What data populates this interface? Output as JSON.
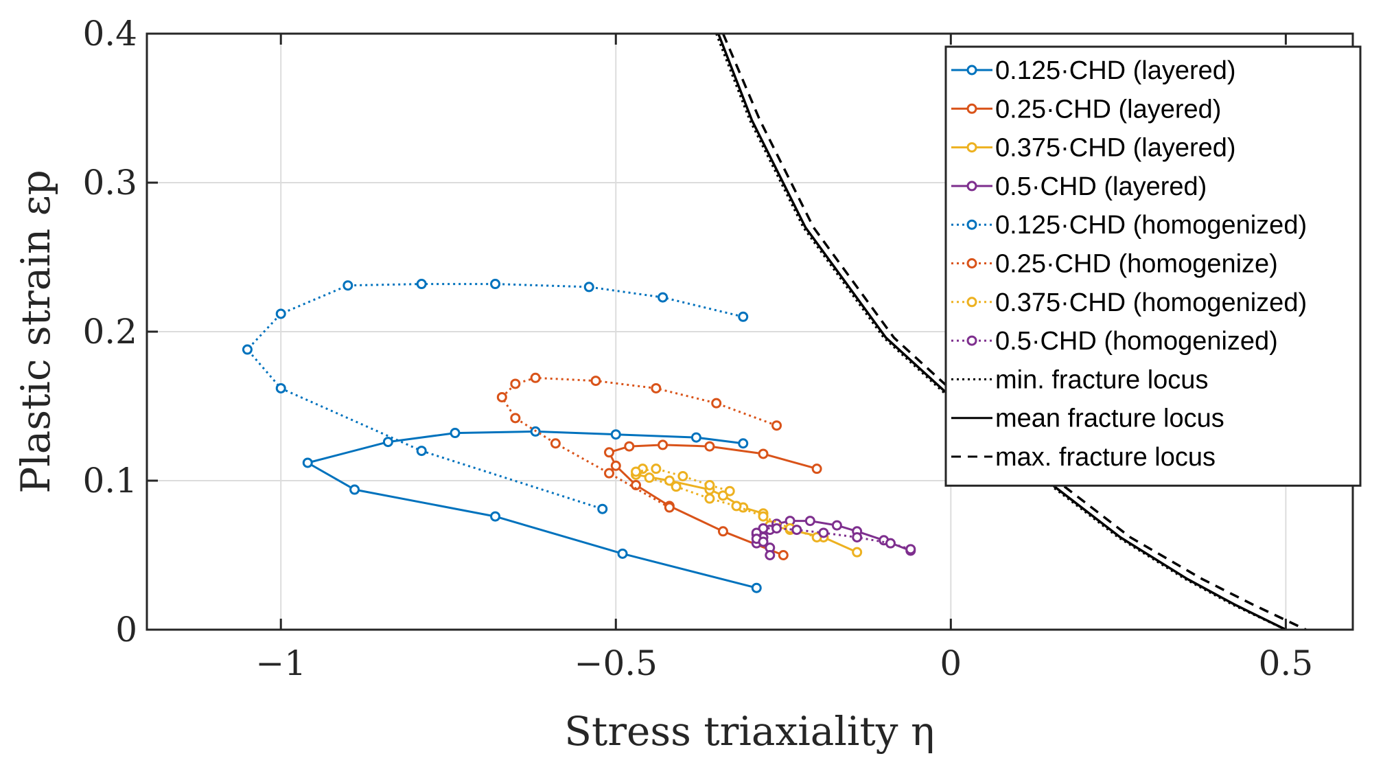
{
  "chart_data": {
    "type": "line",
    "title": "",
    "xlabel": "Stress triaxiality η",
    "ylabel": "Plastic strain εp",
    "xlim": [
      -1.2,
      0.6
    ],
    "ylim": [
      0,
      0.4
    ],
    "xticks": [
      -1,
      -0.5,
      0,
      0.5
    ],
    "xtick_labels": [
      "−1",
      "−0.5",
      "0",
      "0.5"
    ],
    "yticks": [
      0,
      0.1,
      0.2,
      0.3,
      0.4
    ],
    "ytick_labels": [
      "0",
      "0.1",
      "0.2",
      "0.3",
      "0.4"
    ],
    "grid": true,
    "legend_position": "top-right",
    "series": [
      {
        "name": "0.125·CHD (layered)",
        "color": "#0072BD",
        "style": "solid",
        "marker": "circle",
        "x": [
          -0.29,
          -0.49,
          -0.68,
          -0.89,
          -0.96,
          -0.84,
          -0.74,
          -0.62,
          -0.5,
          -0.38,
          -0.31
        ],
        "y": [
          0.028,
          0.051,
          0.076,
          0.094,
          0.112,
          0.126,
          0.132,
          0.133,
          0.131,
          0.129,
          0.125
        ]
      },
      {
        "name": "0.25·CHD (layered)",
        "color": "#D95319",
        "style": "solid",
        "marker": "circle",
        "x": [
          -0.25,
          -0.34,
          -0.42,
          -0.47,
          -0.5,
          -0.51,
          -0.48,
          -0.43,
          -0.36,
          -0.28,
          -0.2
        ],
        "y": [
          0.05,
          0.066,
          0.083,
          0.097,
          0.11,
          0.119,
          0.123,
          0.124,
          0.123,
          0.118,
          0.108
        ]
      },
      {
        "name": "0.375·CHD (layered)",
        "color": "#EDB120",
        "style": "solid",
        "marker": "circle",
        "x": [
          -0.14,
          -0.19,
          -0.24,
          -0.27,
          -0.28,
          -0.31,
          -0.34,
          -0.36,
          -0.42,
          -0.47,
          -0.46
        ],
        "y": [
          0.052,
          0.062,
          0.067,
          0.07,
          0.078,
          0.082,
          0.09,
          0.094,
          0.1,
          0.104,
          0.108
        ]
      },
      {
        "name": "0.5·CHD (layered)",
        "color": "#7E2F8E",
        "style": "solid",
        "marker": "circle",
        "x": [
          -0.06,
          -0.1,
          -0.14,
          -0.17,
          -0.21,
          -0.24,
          -0.26,
          -0.27,
          -0.28,
          -0.29,
          -0.29,
          -0.27,
          -0.27
        ],
        "y": [
          0.053,
          0.06,
          0.066,
          0.07,
          0.073,
          0.073,
          0.071,
          0.067,
          0.062,
          0.058,
          0.064,
          0.055,
          0.05
        ]
      },
      {
        "name": "0.125·CHD (homogenized)",
        "color": "#0072BD",
        "style": "dotted",
        "marker": "circle",
        "x": [
          -0.31,
          -0.43,
          -0.54,
          -0.68,
          -0.79,
          -0.9,
          -1.0,
          -1.05,
          -1.0,
          -0.79,
          -0.52
        ],
        "y": [
          0.21,
          0.223,
          0.23,
          0.232,
          0.232,
          0.231,
          0.212,
          0.188,
          0.162,
          0.12,
          0.081
        ]
      },
      {
        "name": "0.25·CHD (homogenize)",
        "color": "#D95319",
        "style": "dotted",
        "marker": "circle",
        "x": [
          -0.26,
          -0.35,
          -0.44,
          -0.53,
          -0.62,
          -0.65,
          -0.67,
          -0.65,
          -0.59,
          -0.51,
          -0.42
        ],
        "y": [
          0.137,
          0.152,
          0.162,
          0.167,
          0.169,
          0.165,
          0.156,
          0.142,
          0.125,
          0.105,
          0.082
        ]
      },
      {
        "name": "0.375·CHD (homogenized)",
        "color": "#EDB120",
        "style": "dotted",
        "marker": "circle",
        "x": [
          -0.2,
          -0.24,
          -0.28,
          -0.32,
          -0.36,
          -0.41,
          -0.45,
          -0.47,
          -0.44,
          -0.4,
          -0.36,
          -0.33
        ],
        "y": [
          0.062,
          0.068,
          0.076,
          0.083,
          0.088,
          0.096,
          0.102,
          0.106,
          0.108,
          0.103,
          0.097,
          0.093
        ]
      },
      {
        "name": "0.5·CHD (homogenized)",
        "color": "#7E2F8E",
        "style": "dotted",
        "marker": "circle",
        "x": [
          -0.06,
          -0.09,
          -0.14,
          -0.19,
          -0.23,
          -0.26,
          -0.28,
          -0.29,
          -0.29,
          -0.28
        ],
        "y": [
          0.054,
          0.058,
          0.062,
          0.065,
          0.067,
          0.068,
          0.068,
          0.065,
          0.061,
          0.059
        ]
      },
      {
        "name": "min. fracture locus",
        "color": "#000000",
        "style": "dotted",
        "marker": "none",
        "x": [
          -0.35,
          -0.3,
          -0.22,
          -0.1,
          0.0,
          0.12,
          0.25,
          0.35,
          0.42,
          0.5
        ],
        "y": [
          0.4,
          0.342,
          0.27,
          0.196,
          0.155,
          0.107,
          0.062,
          0.034,
          0.017,
          0.0
        ]
      },
      {
        "name": "mean fracture locus",
        "color": "#000000",
        "style": "solid",
        "marker": "none",
        "x": [
          -0.347,
          -0.297,
          -0.217,
          -0.097,
          0.003,
          0.123,
          0.253,
          0.353,
          0.423,
          0.5
        ],
        "y": [
          0.4,
          0.342,
          0.27,
          0.196,
          0.155,
          0.107,
          0.062,
          0.034,
          0.017,
          0.0
        ]
      },
      {
        "name": "max. fracture locus",
        "color": "#000000",
        "style": "dashed",
        "marker": "none",
        "x": [
          -0.34,
          -0.285,
          -0.205,
          -0.085,
          0.015,
          0.138,
          0.268,
          0.375,
          0.45,
          0.53
        ],
        "y": [
          0.4,
          0.342,
          0.27,
          0.196,
          0.155,
          0.107,
          0.062,
          0.034,
          0.017,
          0.0
        ]
      }
    ]
  }
}
